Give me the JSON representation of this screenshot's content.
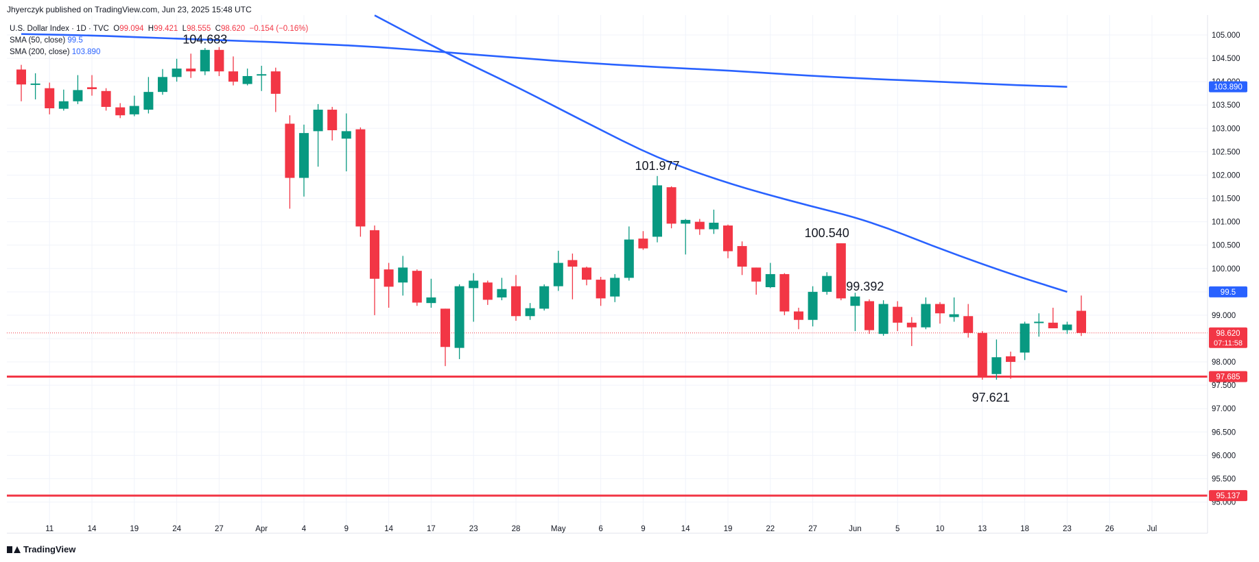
{
  "header": {
    "credit": "Jhyerczyk published on TradingView.com, Jun 23, 2025 15:48 UTC",
    "symbol": "U.S. Dollar Index · 1D · TVC",
    "o_label": "O",
    "o_value": "99.094",
    "h_label": "H",
    "h_value": "99.421",
    "l_label": "L",
    "l_value": "98.555",
    "c_label": "C",
    "c_value": "98.620",
    "change": "−0.154 (−0.16%)",
    "sma50_label": "SMA (50, close)",
    "sma50_value": "99.5",
    "sma200_label": "SMA (200, close)",
    "sma200_value": "103.890"
  },
  "footer": {
    "brand": "TradingView"
  },
  "colors": {
    "up": "#089981",
    "down": "#f23645",
    "sma": "#2962ff",
    "grid": "#f0f3fa",
    "text": "#131722",
    "level": "#f23645"
  },
  "chart_data": {
    "type": "candlestick",
    "ylim": [
      94.8,
      105.4
    ],
    "y_ticks": [
      "95.000",
      "95.500",
      "96.000",
      "96.500",
      "97.000",
      "97.500",
      "98.000",
      "98.500",
      "99.000",
      "99.500",
      "100.000",
      "100.500",
      "101.000",
      "101.500",
      "102.000",
      "102.500",
      "103.000",
      "103.500",
      "104.000",
      "104.500",
      "105.000"
    ],
    "x_tick_labels": [
      "11",
      "14",
      "19",
      "24",
      "27",
      "Apr",
      "4",
      "9",
      "14",
      "17",
      "23",
      "28",
      "May",
      "6",
      "9",
      "14",
      "19",
      "22",
      "27",
      "Jun",
      "5",
      "10",
      "13",
      "18",
      "23",
      "26",
      "Jul"
    ],
    "x_tick_slots": [
      2,
      5,
      8,
      11,
      14,
      17,
      20,
      23,
      26,
      29,
      32,
      35,
      38,
      41,
      44,
      47,
      50,
      53,
      56,
      59,
      62,
      65,
      68,
      71,
      74,
      77,
      80
    ],
    "candles": [
      {
        "o": 104.26,
        "h": 104.36,
        "l": 103.58,
        "c": 103.94
      },
      {
        "o": 103.94,
        "h": 104.18,
        "l": 103.62,
        "c": 103.96
      },
      {
        "o": 103.86,
        "h": 103.98,
        "l": 103.3,
        "c": 103.43
      },
      {
        "o": 103.42,
        "h": 103.83,
        "l": 103.38,
        "c": 103.58
      },
      {
        "o": 103.58,
        "h": 104.14,
        "l": 103.52,
        "c": 103.82
      },
      {
        "o": 103.88,
        "h": 104.14,
        "l": 103.7,
        "c": 103.84
      },
      {
        "o": 103.8,
        "h": 103.86,
        "l": 103.38,
        "c": 103.46
      },
      {
        "o": 103.45,
        "h": 103.54,
        "l": 103.22,
        "c": 103.28
      },
      {
        "o": 103.3,
        "h": 103.7,
        "l": 103.26,
        "c": 103.48
      },
      {
        "o": 103.4,
        "h": 104.1,
        "l": 103.32,
        "c": 103.78
      },
      {
        "o": 103.78,
        "h": 104.27,
        "l": 103.72,
        "c": 104.1
      },
      {
        "o": 104.1,
        "h": 104.49,
        "l": 104.0,
        "c": 104.28
      },
      {
        "o": 104.28,
        "h": 104.6,
        "l": 104.08,
        "c": 104.22
      },
      {
        "o": 104.22,
        "h": 104.72,
        "l": 104.14,
        "c": 104.68
      },
      {
        "o": 104.68,
        "h": 104.74,
        "l": 104.12,
        "c": 104.22
      },
      {
        "o": 104.22,
        "h": 104.54,
        "l": 103.92,
        "c": 104.0
      },
      {
        "o": 103.95,
        "h": 104.28,
        "l": 103.92,
        "c": 104.12
      },
      {
        "o": 104.15,
        "h": 104.34,
        "l": 103.8,
        "c": 104.16
      },
      {
        "o": 104.22,
        "h": 104.3,
        "l": 103.35,
        "c": 103.74
      },
      {
        "o": 103.1,
        "h": 103.28,
        "l": 101.28,
        "c": 101.94
      },
      {
        "o": 101.94,
        "h": 103.08,
        "l": 101.54,
        "c": 102.9
      },
      {
        "o": 102.94,
        "h": 103.52,
        "l": 102.18,
        "c": 103.4
      },
      {
        "o": 103.4,
        "h": 103.46,
        "l": 102.74,
        "c": 102.96
      },
      {
        "o": 102.78,
        "h": 103.32,
        "l": 102.08,
        "c": 102.94
      },
      {
        "o": 102.98,
        "h": 103.02,
        "l": 100.68,
        "c": 100.9
      },
      {
        "o": 100.82,
        "h": 100.92,
        "l": 99.0,
        "c": 99.78
      },
      {
        "o": 99.98,
        "h": 100.12,
        "l": 99.16,
        "c": 99.61
      },
      {
        "o": 99.7,
        "h": 100.27,
        "l": 99.42,
        "c": 100.02
      },
      {
        "o": 99.95,
        "h": 99.98,
        "l": 99.2,
        "c": 99.27
      },
      {
        "o": 99.26,
        "h": 99.78,
        "l": 99.16,
        "c": 99.38
      },
      {
        "o": 99.14,
        "h": 99.14,
        "l": 97.91,
        "c": 98.32
      },
      {
        "o": 98.3,
        "h": 99.66,
        "l": 98.06,
        "c": 99.62
      },
      {
        "o": 99.58,
        "h": 99.9,
        "l": 98.86,
        "c": 99.74
      },
      {
        "o": 99.7,
        "h": 99.74,
        "l": 99.22,
        "c": 99.33
      },
      {
        "o": 99.38,
        "h": 99.8,
        "l": 99.32,
        "c": 99.56
      },
      {
        "o": 99.62,
        "h": 99.86,
        "l": 98.88,
        "c": 98.98
      },
      {
        "o": 98.98,
        "h": 99.26,
        "l": 98.9,
        "c": 99.15
      },
      {
        "o": 99.14,
        "h": 99.66,
        "l": 99.1,
        "c": 99.62
      },
      {
        "o": 99.62,
        "h": 100.38,
        "l": 99.52,
        "c": 100.12
      },
      {
        "o": 100.18,
        "h": 100.32,
        "l": 99.34,
        "c": 100.04
      },
      {
        "o": 100.02,
        "h": 100.04,
        "l": 99.64,
        "c": 99.76
      },
      {
        "o": 99.76,
        "h": 99.82,
        "l": 99.2,
        "c": 99.36
      },
      {
        "o": 99.4,
        "h": 99.88,
        "l": 99.28,
        "c": 99.8
      },
      {
        "o": 99.8,
        "h": 100.9,
        "l": 99.74,
        "c": 100.62
      },
      {
        "o": 100.64,
        "h": 100.8,
        "l": 100.4,
        "c": 100.43
      },
      {
        "o": 100.68,
        "h": 101.98,
        "l": 100.56,
        "c": 101.78
      },
      {
        "o": 101.74,
        "h": 101.76,
        "l": 100.86,
        "c": 100.96
      },
      {
        "o": 100.96,
        "h": 101.06,
        "l": 100.3,
        "c": 101.04
      },
      {
        "o": 101.0,
        "h": 101.06,
        "l": 100.72,
        "c": 100.84
      },
      {
        "o": 100.84,
        "h": 101.26,
        "l": 100.74,
        "c": 100.98
      },
      {
        "o": 100.92,
        "h": 100.94,
        "l": 100.22,
        "c": 100.37
      },
      {
        "o": 100.48,
        "h": 100.58,
        "l": 99.86,
        "c": 100.04
      },
      {
        "o": 100.02,
        "h": 100.02,
        "l": 99.44,
        "c": 99.72
      },
      {
        "o": 99.6,
        "h": 100.12,
        "l": 99.58,
        "c": 99.88
      },
      {
        "o": 99.88,
        "h": 99.9,
        "l": 99.0,
        "c": 99.08
      },
      {
        "o": 99.08,
        "h": 99.16,
        "l": 98.7,
        "c": 98.9
      },
      {
        "o": 98.9,
        "h": 99.62,
        "l": 98.76,
        "c": 99.5
      },
      {
        "o": 99.5,
        "h": 99.92,
        "l": 99.44,
        "c": 99.84
      },
      {
        "o": 100.54,
        "h": 100.54,
        "l": 99.32,
        "c": 99.36
      },
      {
        "o": 99.2,
        "h": 99.48,
        "l": 98.66,
        "c": 99.4
      },
      {
        "o": 99.3,
        "h": 99.34,
        "l": 98.6,
        "c": 98.68
      },
      {
        "o": 98.6,
        "h": 99.32,
        "l": 98.56,
        "c": 99.24
      },
      {
        "o": 99.18,
        "h": 99.3,
        "l": 98.66,
        "c": 98.84
      },
      {
        "o": 98.84,
        "h": 98.96,
        "l": 98.34,
        "c": 98.74
      },
      {
        "o": 98.74,
        "h": 99.38,
        "l": 98.7,
        "c": 99.24
      },
      {
        "o": 99.24,
        "h": 99.28,
        "l": 98.82,
        "c": 99.04
      },
      {
        "o": 98.96,
        "h": 99.38,
        "l": 98.86,
        "c": 99.02
      },
      {
        "o": 98.98,
        "h": 99.24,
        "l": 98.52,
        "c": 98.62
      },
      {
        "o": 98.62,
        "h": 98.66,
        "l": 97.62,
        "c": 97.7
      },
      {
        "o": 97.74,
        "h": 98.48,
        "l": 97.62,
        "c": 98.1
      },
      {
        "o": 98.12,
        "h": 98.22,
        "l": 97.64,
        "c": 98.0
      },
      {
        "o": 98.2,
        "h": 98.86,
        "l": 98.04,
        "c": 98.82
      },
      {
        "o": 98.85,
        "h": 99.04,
        "l": 98.54,
        "c": 98.86
      },
      {
        "o": 98.84,
        "h": 99.16,
        "l": 98.72,
        "c": 98.72
      },
      {
        "o": 98.68,
        "h": 98.86,
        "l": 98.6,
        "c": 98.8
      },
      {
        "o": 99.094,
        "h": 99.421,
        "l": 98.555,
        "c": 98.62
      }
    ],
    "sma50": {
      "name": "SMA (50, close)",
      "slots": [
        25,
        30,
        35,
        40,
        45,
        50,
        55,
        60,
        65,
        70,
        74
      ],
      "values": [
        105.42,
        104.62,
        103.9,
        103.12,
        102.36,
        101.82,
        101.4,
        101.02,
        100.42,
        99.88,
        99.5
      ]
    },
    "sma200": {
      "name": "SMA (200, close)",
      "slots": [
        0,
        5,
        10,
        15,
        20,
        25,
        30,
        35,
        40,
        45,
        50,
        55,
        60,
        65,
        70,
        74
      ],
      "values": [
        105.02,
        104.99,
        104.93,
        104.88,
        104.82,
        104.75,
        104.63,
        104.51,
        104.4,
        104.31,
        104.24,
        104.14,
        104.06,
        104.0,
        103.93,
        103.89
      ]
    },
    "levels": [
      {
        "value": 97.685,
        "label": "97.685"
      },
      {
        "value": 95.137,
        "label": "95.137"
      }
    ],
    "last_price": {
      "value": 98.62,
      "label": "98.620",
      "countdown": "07:11:58"
    },
    "sma_tags": [
      {
        "value": 99.5,
        "label": "99.5"
      },
      {
        "value": 103.89,
        "label": "103.890"
      }
    ],
    "annotations": [
      {
        "slot": 13,
        "value": 104.683,
        "label": "104.683",
        "pos": "above"
      },
      {
        "slot": 45,
        "value": 101.977,
        "label": "101.977",
        "pos": "above"
      },
      {
        "slot": 57,
        "value": 100.54,
        "label": "100.540",
        "pos": "above"
      },
      {
        "slot": 59.7,
        "value": 99.392,
        "label": "99.392",
        "pos": "above"
      },
      {
        "slot": 68.6,
        "value": 97.621,
        "label": "97.621",
        "pos": "below"
      }
    ]
  }
}
